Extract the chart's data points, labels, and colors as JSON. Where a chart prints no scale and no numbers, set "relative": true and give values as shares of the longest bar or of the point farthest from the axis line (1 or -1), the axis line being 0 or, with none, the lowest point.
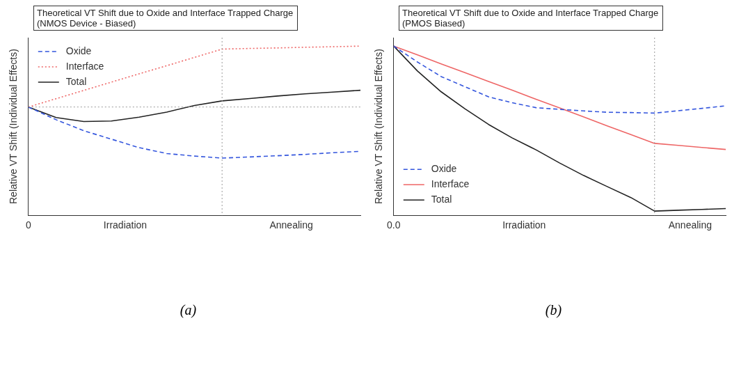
{
  "chart_data": [
    {
      "type": "line",
      "title": "Theoretical VT Shift due to Oxide and Interface Trapped Charge (NMOS Device - Biased)",
      "ylabel": "Relative VT Shift (Individual Effects)",
      "relative": true,
      "legend": "top left",
      "annotations": [
        "0",
        "Irradiation",
        "Annealing",
        "(a)"
      ],
      "categories": [
        null,
        null,
        null,
        null,
        null,
        null,
        null,
        null,
        null,
        null,
        null,
        null,
        null
      ],
      "ref_lines": [
        {
          "axis": "y",
          "value": 0.64,
          "color": "#999999",
          "line_style": "dotted"
        }
      ],
      "series": [
        {
          "name": "Oxide",
          "color": "#3355dd",
          "line_style": "dashed",
          "values": [
            0.64,
            0.565,
            0.5,
            0.45,
            0.4,
            0.365,
            0.35,
            0.338,
            0.345,
            0.352,
            0.36,
            0.37,
            0.378
          ]
        },
        {
          "name": "Interface",
          "color": "#ee6666",
          "line_style": "dotted",
          "values": [
            0.64,
            0.689,
            0.738,
            0.787,
            0.836,
            0.884,
            0.933,
            0.982,
            0.986,
            0.989,
            0.993,
            0.996,
            1.0
          ]
        },
        {
          "name": "Total",
          "color": "#222222",
          "line_style": "solid",
          "values": [
            0.64,
            0.578,
            0.554,
            0.557,
            0.58,
            0.61,
            0.649,
            0.676,
            0.69,
            0.705,
            0.718,
            0.728,
            0.739
          ]
        }
      ]
    },
    {
      "type": "line",
      "title": "Theoretical VT Shift due to Oxide and Interface Trapped Charge (PMOS Biased)",
      "ylabel": "Relative VT Shift (Individual Effects)",
      "relative": true,
      "legend": "bottom left",
      "annotations": [
        "0.0",
        "Irradiation",
        "Annealing",
        "(b)"
      ],
      "categories": [
        null,
        null,
        null,
        null,
        null,
        null,
        null,
        null,
        null,
        null,
        null,
        null,
        null,
        null,
        null
      ],
      "series": [
        {
          "name": "Oxide",
          "color": "#3355dd",
          "line_style": "dashed",
          "values": [
            1,
            0.906,
            0.82,
            0.76,
            0.7,
            0.665,
            0.636,
            0.626,
            0.617,
            0.609,
            0.607,
            0.604,
            0.618,
            0.632,
            0.647
          ]
        },
        {
          "name": "Interface",
          "color": "#ee6666",
          "line_style": "solid",
          "values": [
            1,
            0.948,
            0.895,
            0.843,
            0.791,
            0.739,
            0.686,
            0.634,
            0.582,
            0.529,
            0.477,
            0.425,
            0.413,
            0.401,
            0.389
          ]
        },
        {
          "name": "Total",
          "color": "#222222",
          "line_style": "solid",
          "values": [
            1,
            0.853,
            0.73,
            0.63,
            0.537,
            0.457,
            0.387,
            0.309,
            0.236,
            0.17,
            0.105,
            0.025,
            0.03,
            0.035,
            0.04
          ]
        }
      ]
    }
  ]
}
